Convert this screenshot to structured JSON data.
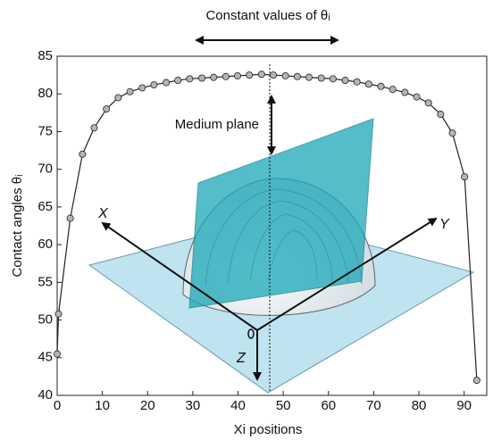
{
  "chart_data": {
    "type": "line",
    "x_label": "Xi positions",
    "y_label": "Contact angles θᵢ",
    "annotations": [
      "Constant values of θᵢ",
      "Medium plane",
      "X",
      "Y",
      "Z"
    ],
    "x": [
      0,
      0.3,
      2.9,
      5.6,
      8.2,
      10.9,
      13.5,
      16.1,
      18.8,
      21.4,
      24.1,
      26.7,
      29.3,
      32,
      34.6,
      37.3,
      39.9,
      42.5,
      45.2,
      47.8,
      50.5,
      53.1,
      55.7,
      58.4,
      61,
      63.7,
      66.3,
      68.9,
      71.6,
      74.2,
      76.9,
      79.5,
      82.1,
      84.8,
      87.4,
      90.1,
      92.8
    ],
    "series": [
      {
        "color": "#222222",
        "marker_color": "#b5b5b5",
        "values": [
          45.5,
          50.8,
          63.5,
          72,
          75.5,
          78,
          79.5,
          80.3,
          80.8,
          81.2,
          81.5,
          81.8,
          82,
          82.1,
          82.2,
          82.3,
          82.4,
          82.5,
          82.6,
          82.5,
          82.4,
          82.3,
          82.2,
          82.1,
          82,
          81.8,
          81.6,
          81.3,
          81,
          80.6,
          80.2,
          79.6,
          78.8,
          77.3,
          74.8,
          69,
          42
        ]
      }
    ],
    "xlim": [
      0,
      95
    ],
    "ylim": [
      40,
      85
    ],
    "xticks": [
      0,
      10,
      20,
      30,
      40,
      50,
      60,
      70,
      80,
      90
    ],
    "yticks": [
      40,
      45,
      50,
      55,
      60,
      65,
      70,
      75,
      80,
      85
    ]
  }
}
